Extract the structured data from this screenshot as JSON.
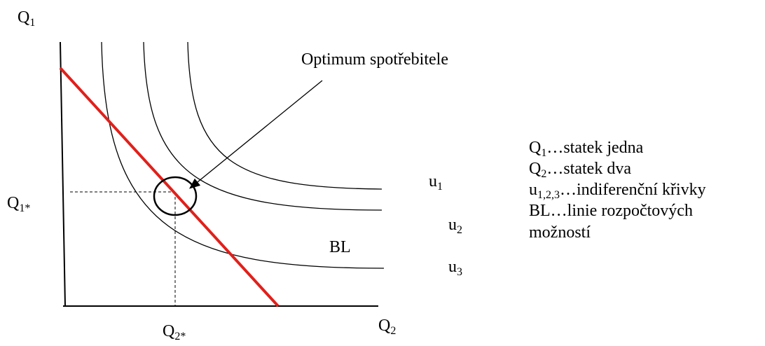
{
  "axes": {
    "y_label": {
      "main": "Q",
      "sub": "1"
    },
    "x_label": {
      "main": "Q",
      "sub": "2"
    },
    "y_optimum": {
      "main": "Q",
      "sub": "1*"
    },
    "x_optimum": {
      "main": "Q",
      "sub": "2*"
    }
  },
  "annotation": "Optimum spotřebitele",
  "budget_line_label": "BL",
  "curves": [
    {
      "main": "u",
      "sub": "1"
    },
    {
      "main": "u",
      "sub": "2"
    },
    {
      "main": "u",
      "sub": "3"
    }
  ],
  "legend": [
    {
      "main": "Q",
      "sub": "1",
      "text": "…statek jedna"
    },
    {
      "main": "Q",
      "sub": "2",
      "text": "…statek dva"
    },
    {
      "main": "u",
      "sub": "1,2,3",
      "text": "…indiferenční křivky"
    },
    {
      "main": "BL",
      "text": "…linie rozpočtových",
      "cont": "možností"
    }
  ]
}
